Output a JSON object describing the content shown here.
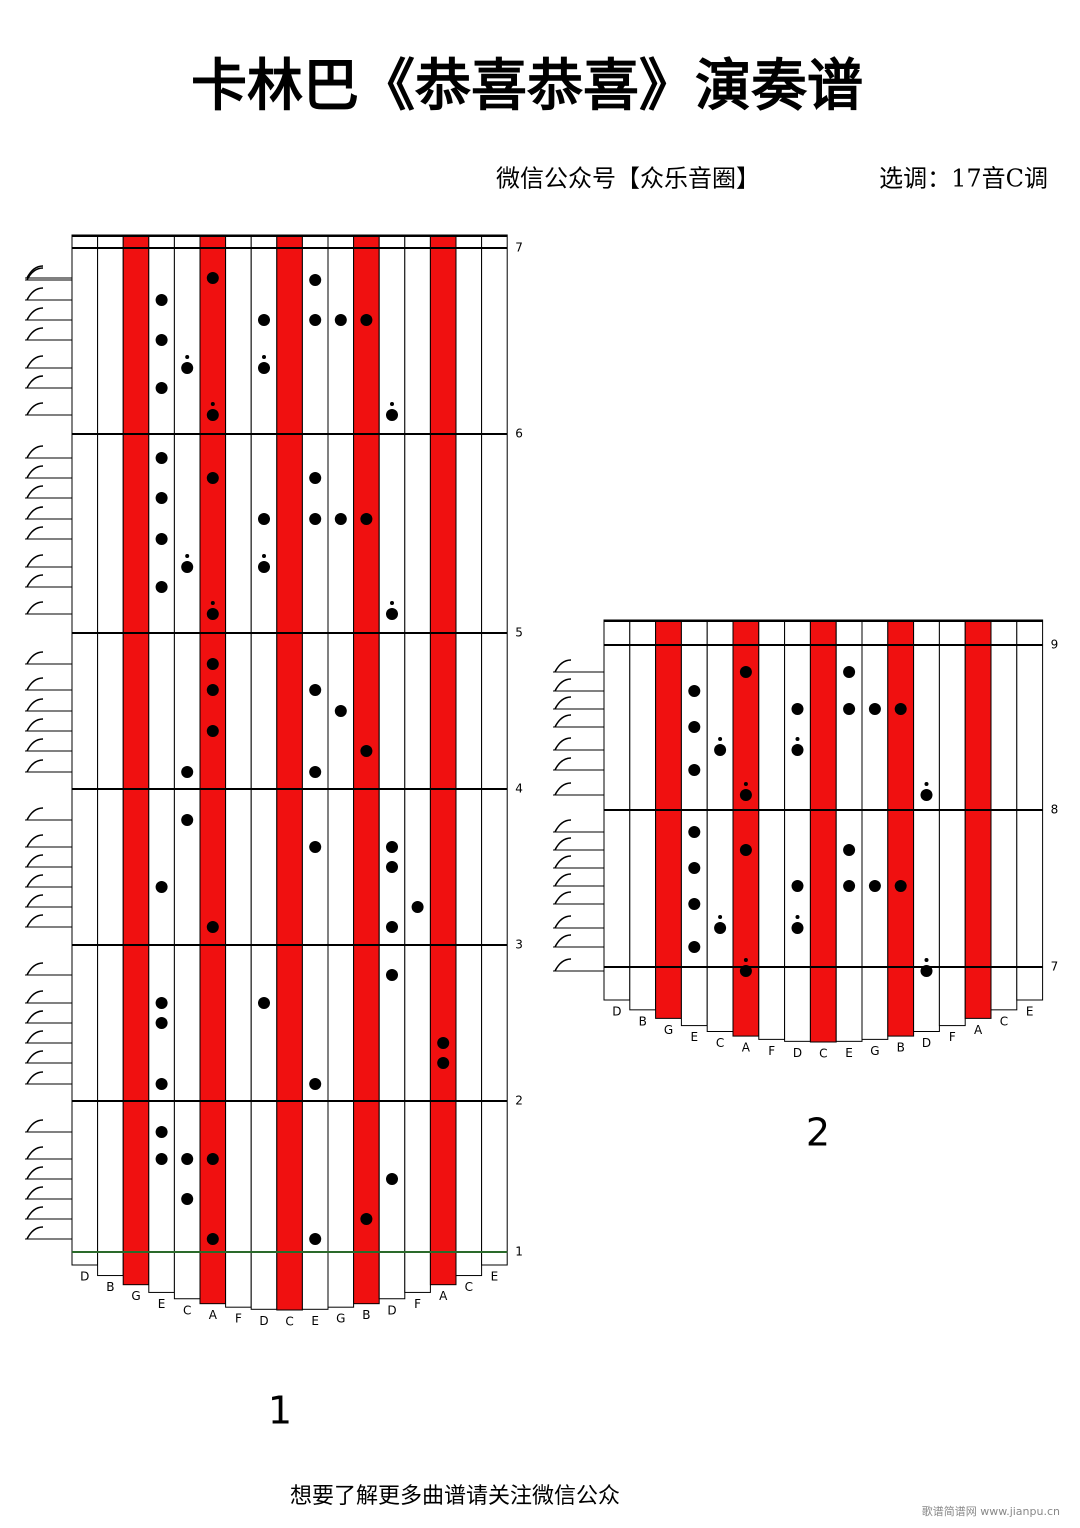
{
  "header": {
    "title": "卡林巴《恭喜恭喜》演奏谱",
    "source": "微信公众号【众乐音圈】",
    "key": "选调：17音C调"
  },
  "panels": [
    {
      "number": "1",
      "measures": [
        "7",
        "6",
        "5",
        "4",
        "3",
        "2",
        "1"
      ],
      "keys": [
        "D",
        "B",
        "G",
        "E",
        "C",
        "A",
        "F",
        "D",
        "C",
        "E",
        "G",
        "B",
        "D",
        "F",
        "A",
        "C",
        "E"
      ]
    },
    {
      "number": "2",
      "measures": [
        "9",
        "8",
        "7"
      ],
      "keys": [
        "D",
        "B",
        "G",
        "E",
        "C",
        "A",
        "F",
        "D",
        "C",
        "E",
        "G",
        "B",
        "D",
        "F",
        "A",
        "C",
        "E"
      ]
    }
  ],
  "footer": "想要了解更多曲谱请关注微信公众",
  "watermark": "歌谱简谱网 www.jianpu.cn"
}
